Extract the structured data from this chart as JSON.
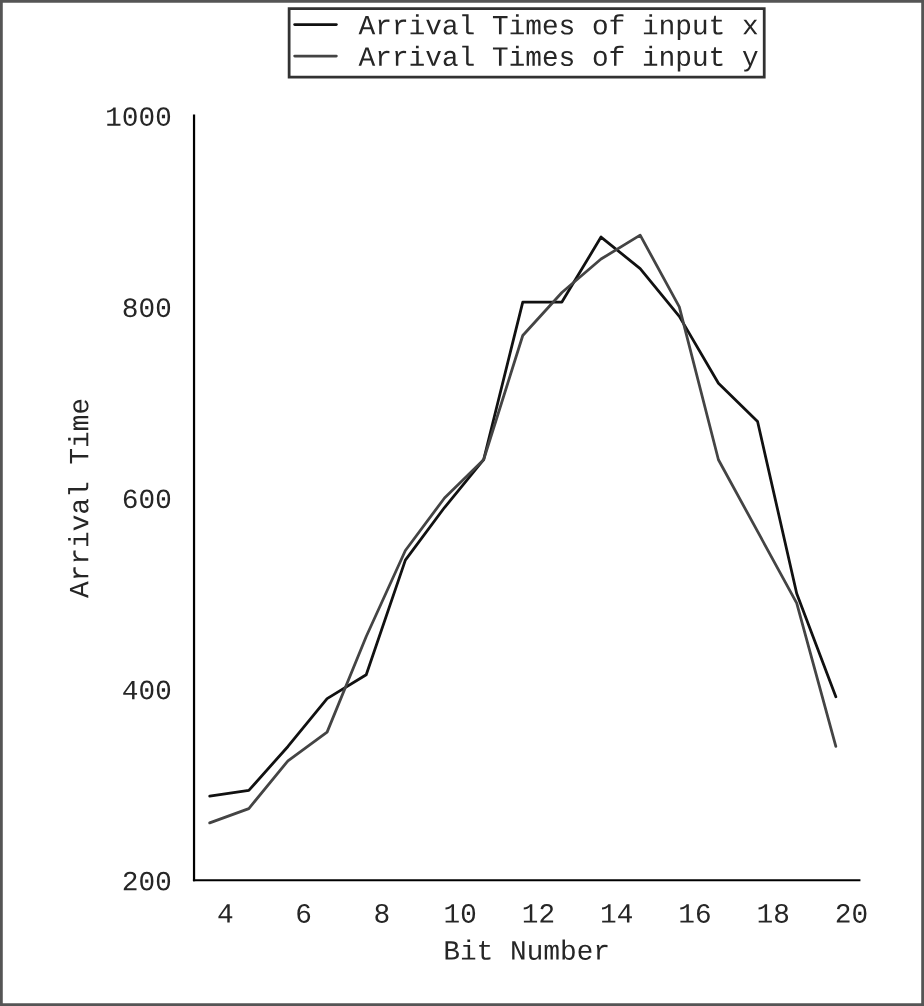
{
  "chart_data": {
    "type": "line",
    "xlabel": "Bit Number",
    "ylabel": "Arrival Time",
    "x": [
      3.6,
      4.6,
      5.6,
      6.6,
      7.6,
      8.6,
      9.6,
      10.6,
      11.6,
      12.6,
      13.6,
      14.6,
      15.6,
      16.6,
      17.6,
      18.6,
      19.6
    ],
    "series": [
      {
        "name": "Arrival Times of input x",
        "color": "#111111",
        "values": [
          288,
          294,
          340,
          390,
          415,
          535,
          590,
          640,
          805,
          805,
          873,
          840,
          790,
          720,
          680,
          500,
          392
        ]
      },
      {
        "name": "Arrival Times of input y",
        "color": "#444444",
        "values": [
          260,
          275,
          325,
          355,
          455,
          545,
          600,
          640,
          770,
          815,
          850,
          875,
          800,
          640,
          565,
          490,
          340
        ]
      }
    ],
    "xlim": [
      3.2,
      20.2
    ],
    "xticks": [
      4,
      6,
      8,
      10,
      12,
      14,
      16,
      18,
      20
    ],
    "ylim": [
      200,
      1000
    ],
    "yticks": [
      200,
      400,
      600,
      800,
      1000
    ],
    "legend": "top",
    "grid": false
  }
}
